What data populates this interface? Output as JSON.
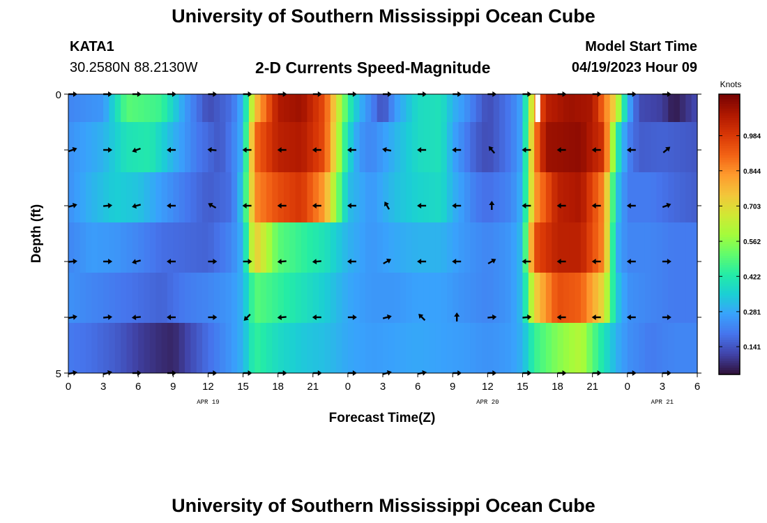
{
  "page": {
    "title": "University of Southern Mississippi Ocean Cube",
    "bottom_title": "University of Southern Mississippi Ocean Cube",
    "station": "KATA1",
    "coords": "30.2580N  88.2130W",
    "subtitle": "2-D Currents Speed-Magnitude",
    "model_label": "Model Start Time",
    "model_time": "04/19/2023 Hour 09"
  },
  "colors": {
    "stops": [
      "#30123b",
      "#4145ab",
      "#4675ed",
      "#39a2fc",
      "#1bcfd4",
      "#24eca6",
      "#61fc6c",
      "#a4fc3b",
      "#d1e834",
      "#f3c63a",
      "#fe9b2d",
      "#f36315",
      "#d93806",
      "#b11901",
      "#7a0402"
    ]
  },
  "chart_data": {
    "type": "heatmap",
    "title": "2-D Currents Speed-Magnitude",
    "xlabel": "Forecast Time(Z)",
    "ylabel": "Depth (ft)",
    "ylim": [
      0,
      5
    ],
    "x_hours": [
      0,
      3,
      6,
      9,
      12,
      15,
      18,
      21,
      24,
      27,
      30,
      33,
      36,
      39,
      42,
      45,
      48,
      51,
      54
    ],
    "x_tick_labels": [
      "0",
      "3",
      "6",
      "9",
      "12",
      "15",
      "18",
      "21",
      "0",
      "3",
      "6",
      "9",
      "12",
      "15",
      "18",
      "21",
      "0",
      "3",
      "6"
    ],
    "y_tick_labels": [
      "0",
      "5"
    ],
    "date_labels": [
      {
        "hour": 12,
        "label": "APR 19"
      },
      {
        "hour": 36,
        "label": "APR 20"
      },
      {
        "hour": 51,
        "label": "APR 21"
      }
    ],
    "colorbar": {
      "label": "Knots",
      "min": 0.03,
      "max": 1.15,
      "ticks": [
        "0.141",
        "0.281",
        "0.422",
        "0.562",
        "0.703",
        "0.844",
        "0.984"
      ]
    },
    "speed_profile_rows": [
      [
        [
          0,
          0.22
        ],
        [
          3,
          0.25
        ],
        [
          5,
          0.5
        ],
        [
          8,
          0.46
        ],
        [
          10,
          0.26
        ],
        [
          12,
          0.12
        ],
        [
          14,
          0.18
        ],
        [
          15,
          0.3
        ],
        [
          16,
          0.75
        ],
        [
          18,
          1.07
        ],
        [
          20,
          1.1
        ],
        [
          22,
          0.95
        ],
        [
          24,
          0.45
        ],
        [
          25,
          0.3
        ],
        [
          26,
          0.22
        ],
        [
          27,
          0.12
        ],
        [
          28,
          0.25
        ],
        [
          30,
          0.38
        ],
        [
          32,
          0.4
        ],
        [
          33,
          0.3
        ],
        [
          34,
          0.25
        ],
        [
          36,
          0.12
        ],
        [
          38,
          0.2
        ],
        [
          39,
          0.28
        ],
        [
          40,
          0.8
        ],
        [
          41,
          1.05
        ],
        [
          43,
          1.1
        ],
        [
          45,
          1.08
        ],
        [
          47,
          0.7
        ],
        [
          48,
          0.3
        ],
        [
          49,
          0.12
        ],
        [
          51,
          0.1
        ],
        [
          52,
          0.04
        ],
        [
          53,
          0.08
        ],
        [
          54,
          0.12
        ]
      ],
      [
        [
          0,
          0.24
        ],
        [
          3,
          0.3
        ],
        [
          5,
          0.4
        ],
        [
          7,
          0.42
        ],
        [
          9,
          0.3
        ],
        [
          11,
          0.2
        ],
        [
          13,
          0.14
        ],
        [
          14,
          0.2
        ],
        [
          15,
          0.3
        ],
        [
          16,
          0.9
        ],
        [
          18,
          1.05
        ],
        [
          20,
          1.07
        ],
        [
          22,
          0.95
        ],
        [
          24,
          0.38
        ],
        [
          25,
          0.25
        ],
        [
          26,
          0.22
        ],
        [
          28,
          0.3
        ],
        [
          30,
          0.38
        ],
        [
          32,
          0.4
        ],
        [
          33,
          0.28
        ],
        [
          35,
          0.15
        ],
        [
          36,
          0.12
        ],
        [
          38,
          0.2
        ],
        [
          39,
          0.28
        ],
        [
          40,
          0.85
        ],
        [
          41,
          1.1
        ],
        [
          44,
          1.12
        ],
        [
          46,
          1.0
        ],
        [
          47,
          0.45
        ],
        [
          48,
          0.22
        ],
        [
          49,
          0.15
        ],
        [
          51,
          0.16
        ],
        [
          54,
          0.14
        ]
      ],
      [
        [
          0,
          0.24
        ],
        [
          2,
          0.3
        ],
        [
          4,
          0.35
        ],
        [
          6,
          0.33
        ],
        [
          8,
          0.26
        ],
        [
          10,
          0.2
        ],
        [
          12,
          0.15
        ],
        [
          14,
          0.18
        ],
        [
          15,
          0.35
        ],
        [
          16,
          0.85
        ],
        [
          18,
          0.95
        ],
        [
          20,
          1.0
        ],
        [
          22,
          0.82
        ],
        [
          24,
          0.32
        ],
        [
          26,
          0.25
        ],
        [
          28,
          0.32
        ],
        [
          30,
          0.36
        ],
        [
          32,
          0.38
        ],
        [
          33,
          0.3
        ],
        [
          35,
          0.2
        ],
        [
          36,
          0.18
        ],
        [
          38,
          0.22
        ],
        [
          39,
          0.3
        ],
        [
          40,
          0.82
        ],
        [
          42,
          1.05
        ],
        [
          44,
          1.08
        ],
        [
          46,
          0.85
        ],
        [
          47,
          0.35
        ],
        [
          48,
          0.2
        ],
        [
          50,
          0.2
        ],
        [
          52,
          0.17
        ],
        [
          54,
          0.15
        ]
      ],
      [
        [
          0,
          0.22
        ],
        [
          2,
          0.26
        ],
        [
          4,
          0.25
        ],
        [
          6,
          0.22
        ],
        [
          8,
          0.18
        ],
        [
          10,
          0.17
        ],
        [
          12,
          0.16
        ],
        [
          14,
          0.22
        ],
        [
          15,
          0.3
        ],
        [
          16,
          0.75
        ],
        [
          18,
          0.5
        ],
        [
          20,
          0.45
        ],
        [
          22,
          0.4
        ],
        [
          24,
          0.3
        ],
        [
          26,
          0.25
        ],
        [
          28,
          0.28
        ],
        [
          30,
          0.3
        ],
        [
          32,
          0.3
        ],
        [
          34,
          0.25
        ],
        [
          36,
          0.22
        ],
        [
          38,
          0.25
        ],
        [
          39,
          0.32
        ],
        [
          40,
          0.95
        ],
        [
          42,
          1.05
        ],
        [
          44,
          1.05
        ],
        [
          46,
          0.85
        ],
        [
          47,
          0.3
        ],
        [
          48,
          0.22
        ],
        [
          50,
          0.22
        ],
        [
          52,
          0.2
        ],
        [
          54,
          0.2
        ]
      ],
      [
        [
          0,
          0.24
        ],
        [
          2,
          0.22
        ],
        [
          4,
          0.2
        ],
        [
          6,
          0.18
        ],
        [
          8,
          0.16
        ],
        [
          10,
          0.2
        ],
        [
          12,
          0.22
        ],
        [
          14,
          0.25
        ],
        [
          15,
          0.3
        ],
        [
          16,
          0.5
        ],
        [
          18,
          0.45
        ],
        [
          20,
          0.4
        ],
        [
          22,
          0.35
        ],
        [
          24,
          0.28
        ],
        [
          26,
          0.25
        ],
        [
          28,
          0.25
        ],
        [
          30,
          0.27
        ],
        [
          32,
          0.27
        ],
        [
          34,
          0.24
        ],
        [
          36,
          0.22
        ],
        [
          38,
          0.25
        ],
        [
          39,
          0.32
        ],
        [
          40,
          0.72
        ],
        [
          42,
          0.95
        ],
        [
          44,
          0.92
        ],
        [
          46,
          0.7
        ],
        [
          47,
          0.35
        ],
        [
          48,
          0.24
        ],
        [
          50,
          0.22
        ],
        [
          52,
          0.2
        ],
        [
          54,
          0.2
        ]
      ],
      [
        [
          0,
          0.2
        ],
        [
          2,
          0.18
        ],
        [
          4,
          0.15
        ],
        [
          6,
          0.1
        ],
        [
          8,
          0.07
        ],
        [
          9,
          0.06
        ],
        [
          10,
          0.1
        ],
        [
          12,
          0.18
        ],
        [
          14,
          0.25
        ],
        [
          15,
          0.3
        ],
        [
          16,
          0.45
        ],
        [
          18,
          0.38
        ],
        [
          20,
          0.34
        ],
        [
          22,
          0.32
        ],
        [
          24,
          0.28
        ],
        [
          26,
          0.26
        ],
        [
          28,
          0.27
        ],
        [
          30,
          0.28
        ],
        [
          32,
          0.27
        ],
        [
          34,
          0.26
        ],
        [
          36,
          0.24
        ],
        [
          38,
          0.26
        ],
        [
          39,
          0.3
        ],
        [
          40,
          0.45
        ],
        [
          42,
          0.55
        ],
        [
          44,
          0.62
        ],
        [
          45,
          0.5
        ],
        [
          47,
          0.3
        ],
        [
          48,
          0.24
        ],
        [
          50,
          0.2
        ],
        [
          52,
          0.22
        ],
        [
          54,
          0.22
        ]
      ]
    ],
    "arrow_hours": [
      0,
      3,
      5.5,
      8.5,
      12,
      15,
      18,
      21,
      24,
      27,
      30,
      33,
      36,
      39,
      42,
      45,
      48,
      51
    ],
    "arrow_directions_deg": [
      [
        0,
        0,
        0,
        0,
        0,
        0,
        0,
        0,
        0,
        0,
        0,
        0,
        0,
        0,
        0,
        0,
        0,
        0
      ],
      [
        20,
        0,
        200,
        180,
        175,
        180,
        180,
        180,
        180,
        170,
        180,
        180,
        130,
        180,
        180,
        180,
        180,
        40
      ],
      [
        15,
        5,
        195,
        180,
        150,
        180,
        180,
        180,
        180,
        120,
        180,
        180,
        90,
        180,
        180,
        180,
        180,
        20
      ],
      [
        5,
        0,
        195,
        180,
        0,
        0,
        185,
        185,
        180,
        30,
        180,
        180,
        30,
        180,
        180,
        180,
        180,
        0
      ],
      [
        10,
        5,
        185,
        180,
        0,
        225,
        185,
        180,
        0,
        15,
        135,
        90,
        5,
        5,
        180,
        180,
        180,
        0
      ],
      [
        10,
        15,
        0,
        0,
        0,
        0,
        0,
        0,
        0,
        15,
        10,
        0,
        0,
        0,
        0,
        0,
        0,
        0
      ]
    ]
  }
}
